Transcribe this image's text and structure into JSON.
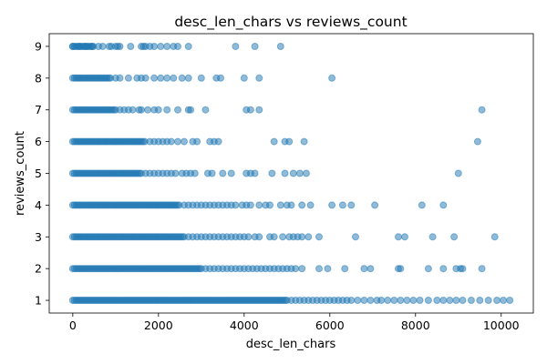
{
  "chart_data": {
    "type": "scatter",
    "title": "desc_len_chars vs reviews_count",
    "xlabel": "desc_len_chars",
    "ylabel": "reviews_count",
    "xlim": [
      -550,
      10750
    ],
    "ylim": [
      0.6,
      9.4
    ],
    "xticks": [
      0,
      2000,
      4000,
      6000,
      8000,
      10000
    ],
    "yticks": [
      1,
      2,
      3,
      4,
      5,
      6,
      7,
      8,
      9
    ],
    "grid": false,
    "color": "#1f77b4",
    "dense_ranges": [
      {
        "y": 1,
        "from": 0,
        "to": 5000
      },
      {
        "y": 2,
        "from": 0,
        "to": 3000
      },
      {
        "y": 3,
        "from": 0,
        "to": 2600
      },
      {
        "y": 4,
        "from": 0,
        "to": 2500
      },
      {
        "y": 5,
        "from": 0,
        "to": 1600
      },
      {
        "y": 6,
        "from": 0,
        "to": 1700
      },
      {
        "y": 7,
        "from": 0,
        "to": 1000
      },
      {
        "y": 8,
        "from": 0,
        "to": 900
      },
      {
        "y": 9,
        "from": 0,
        "to": 500
      }
    ],
    "points": [
      {
        "y": 9,
        "x": [
          0,
          150,
          300,
          450,
          600,
          700,
          850,
          900,
          1000,
          1050,
          1100,
          1350,
          1600,
          1650,
          1700,
          1800,
          1900,
          2050,
          2200,
          2350,
          2450,
          2700,
          3800,
          4250,
          4850
        ]
      },
      {
        "y": 8,
        "x": [
          1000,
          1100,
          1300,
          1500,
          1600,
          1700,
          1900,
          2050,
          2200,
          2350,
          2550,
          2700,
          3000,
          3350,
          3450,
          4000,
          4350,
          6050
        ]
      },
      {
        "y": 7,
        "x": [
          1100,
          1200,
          1300,
          1400,
          1550,
          1600,
          1750,
          1900,
          2000,
          2200,
          2450,
          2700,
          2750,
          3100,
          4050,
          4150,
          4350,
          9550
        ]
      },
      {
        "y": 6,
        "x": [
          1800,
          1900,
          2000,
          2100,
          2200,
          2300,
          2450,
          2600,
          2800,
          2900,
          3200,
          3300,
          3400,
          4700,
          4950,
          5050,
          5400,
          9450
        ]
      },
      {
        "y": 5,
        "x": [
          1700,
          1800,
          1900,
          2000,
          2100,
          2200,
          2300,
          2400,
          2550,
          2650,
          2750,
          2850,
          3150,
          3250,
          3500,
          3700,
          4050,
          4150,
          4250,
          4650,
          4950,
          5150,
          5300,
          5450,
          9000
        ]
      },
      {
        "y": 4,
        "x": [
          2600,
          2700,
          2800,
          2900,
          3000,
          3100,
          3200,
          3300,
          3400,
          3500,
          3600,
          3700,
          3800,
          3950,
          4050,
          4150,
          4350,
          4500,
          4600,
          4850,
          5000,
          5100,
          5350,
          5550,
          6050,
          6300,
          6500,
          7050,
          8150,
          8650
        ]
      },
      {
        "y": 3,
        "x": [
          2700,
          2800,
          2900,
          3000,
          3100,
          3200,
          3300,
          3400,
          3500,
          3600,
          3700,
          3800,
          3900,
          4000,
          4100,
          4250,
          4350,
          4600,
          4700,
          4900,
          5050,
          5150,
          5250,
          5350,
          5500,
          5750,
          6600,
          7600,
          7750,
          8400,
          8900,
          9850
        ]
      },
      {
        "y": 2,
        "x": [
          3100,
          3200,
          3300,
          3400,
          3500,
          3600,
          3700,
          3800,
          3900,
          4000,
          4100,
          4200,
          4300,
          4400,
          4500,
          4600,
          4700,
          4800,
          4900,
          5000,
          5100,
          5200,
          5350,
          5750,
          5950,
          6350,
          6800,
          6950,
          7600,
          7650,
          8300,
          8650,
          8950,
          9050,
          9100,
          9550
        ]
      },
      {
        "y": 1,
        "x": [
          5100,
          5200,
          5300,
          5400,
          5500,
          5600,
          5700,
          5800,
          5900,
          6000,
          6100,
          6200,
          6300,
          6400,
          6500,
          6650,
          6800,
          6950,
          7100,
          7200,
          7350,
          7500,
          7650,
          7800,
          7950,
          8100,
          8300,
          8500,
          8650,
          8800,
          8950,
          9100,
          9300,
          9500,
          9700,
          9900,
          10050,
          10200
        ]
      }
    ]
  }
}
